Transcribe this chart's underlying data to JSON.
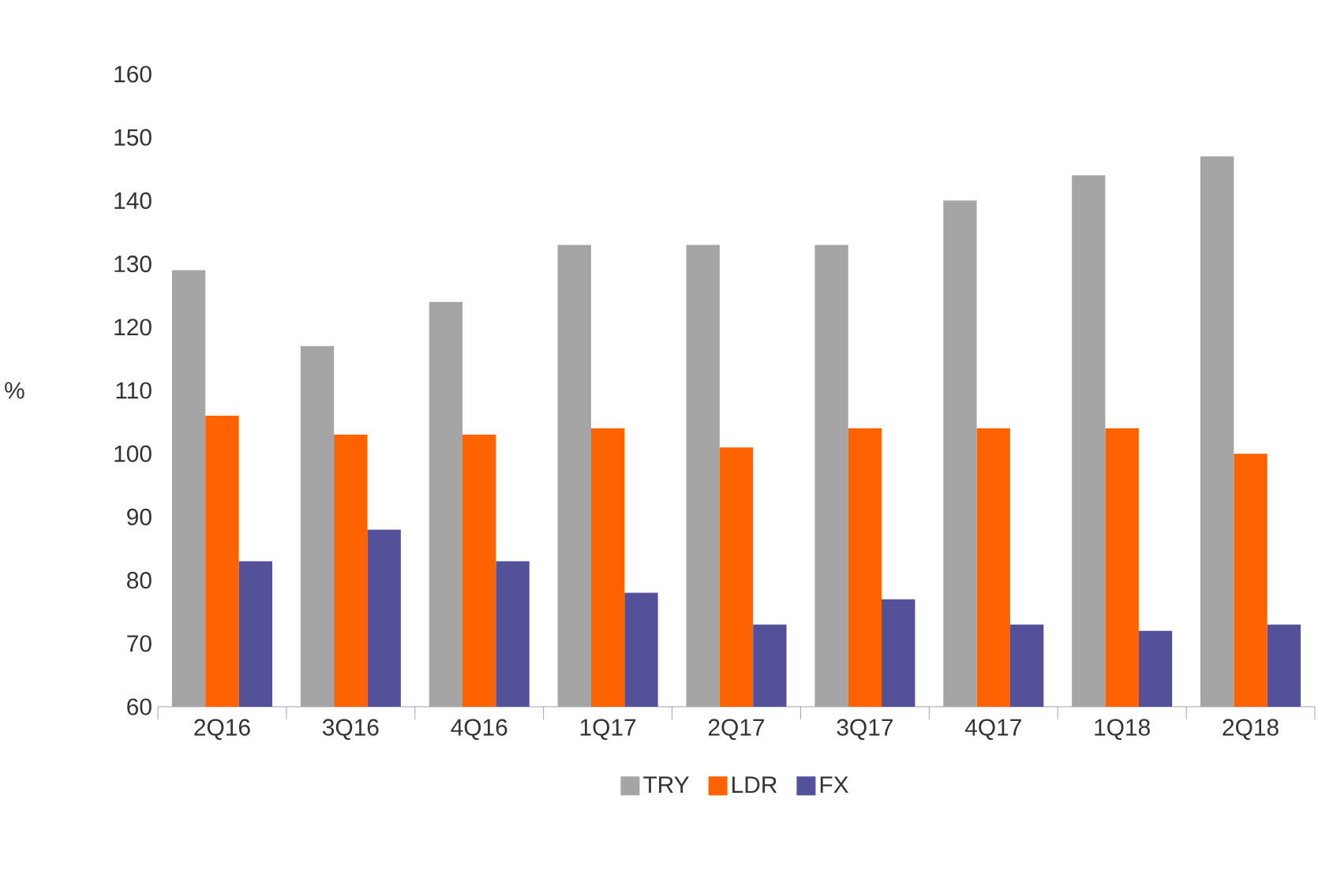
{
  "chart_data": {
    "type": "bar",
    "ylabel": "%",
    "categories": [
      "2Q16",
      "3Q16",
      "4Q16",
      "1Q17",
      "2Q17",
      "3Q17",
      "4Q17",
      "1Q18",
      "2Q18"
    ],
    "series": [
      {
        "name": "TRY",
        "color": "#a5a5a5",
        "values": [
          129,
          117,
          124,
          133,
          133,
          133,
          140,
          144,
          147
        ]
      },
      {
        "name": "LDR",
        "color": "#ff6200",
        "values": [
          106,
          103,
          103,
          104,
          101,
          104,
          104,
          104,
          100
        ]
      },
      {
        "name": "FX",
        "color": "#525199",
        "values": [
          83,
          88,
          83,
          78,
          73,
          77,
          73,
          72,
          73
        ]
      }
    ],
    "ylim": [
      60,
      160
    ],
    "yticks": [
      60,
      70,
      80,
      90,
      100,
      110,
      120,
      130,
      140,
      150,
      160
    ],
    "grid": false,
    "legend": "bottom"
  }
}
